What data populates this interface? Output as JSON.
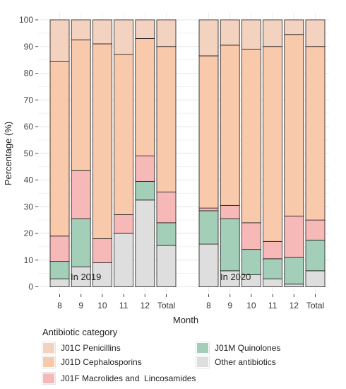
{
  "chart_data": {
    "type": "bar",
    "stacked": true,
    "ylabel": "Percentage (%)",
    "xlabel": "Month",
    "ylim": [
      0,
      100
    ],
    "yticks": [
      0,
      10,
      20,
      30,
      40,
      50,
      60,
      70,
      80,
      90,
      100
    ],
    "grid": true,
    "legend_position": "bottom",
    "legend_title": "Antibiotic category",
    "groups": [
      {
        "label": "In 2019",
        "categories": [
          "8",
          "9",
          "10",
          "11",
          "12",
          "Total"
        ],
        "stacks": {
          "Other antibiotics": [
            3,
            7.5,
            9,
            20,
            32.5,
            15.5
          ],
          "J01M Quinolones": [
            6.5,
            18,
            0,
            0,
            7,
            8.5
          ],
          "J01F Macrolides and Lincosamides": [
            9.5,
            18,
            9,
            7,
            9.5,
            11.5
          ],
          "J01D Cephalosporins": [
            65.5,
            49,
            73,
            60,
            44,
            54.5
          ],
          "J01C Penicillins": [
            15.5,
            7.5,
            9,
            13,
            7,
            10
          ]
        }
      },
      {
        "label": "In 2020",
        "categories": [
          "8",
          "9",
          "10",
          "11",
          "12",
          "Total"
        ],
        "stacks": {
          "Other antibiotics": [
            16,
            6,
            4.5,
            3,
            1,
            6
          ],
          "J01M Quinolones": [
            12.5,
            19.5,
            9.5,
            7.5,
            10,
            11.5
          ],
          "J01F Macrolides and Lincosamides": [
            1,
            5,
            10,
            6.5,
            15.5,
            7.5
          ],
          "J01D Cephalosporins": [
            57,
            60,
            65,
            73,
            68,
            65
          ],
          "J01C Penicillins": [
            13.5,
            9.5,
            11,
            10,
            5.5,
            10
          ]
        }
      }
    ],
    "series": [
      {
        "name": "J01C Penicillins",
        "color": "#f3d2c0"
      },
      {
        "name": "J01D Cephalosporins",
        "color": "#f9c9ac"
      },
      {
        "name": "J01F Macrolides and  Lincosamides",
        "color": "#f7b9b8"
      },
      {
        "name": "J01M Quinolones",
        "color": "#a3cfb8"
      },
      {
        "name": "Other antibiotics",
        "color": "#dedede"
      }
    ]
  }
}
